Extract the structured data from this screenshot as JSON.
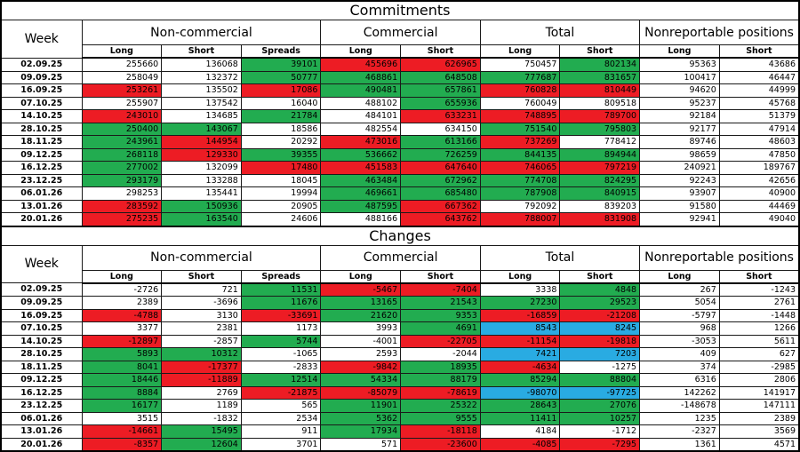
{
  "colors": {
    "green": "#22AC50",
    "red": "#ED1C24",
    "blue": "#29ABE2",
    "white": "#FFFFFF"
  },
  "fill_legend": {
    "w": "white",
    "g": "green",
    "r": "red",
    "b": "blue"
  },
  "chart_data": [
    {
      "type": "table",
      "title": "Commitments",
      "week_label": "Week",
      "groups": [
        {
          "label": "Non-commercial",
          "columns": [
            "Long",
            "Short",
            "Spreads"
          ]
        },
        {
          "label": "Commercial",
          "columns": [
            "Long",
            "Short"
          ]
        },
        {
          "label": "Total",
          "columns": [
            "Long",
            "Short"
          ]
        },
        {
          "label": "Nonreportable positions",
          "columns": [
            "Long",
            "Short"
          ]
        }
      ],
      "rows": [
        {
          "week": "02.09.25",
          "values": [
            "255660",
            "136068",
            "39101",
            "455696",
            "626965",
            "750457",
            "802134",
            "95363",
            "43686"
          ],
          "fills": [
            "w",
            "w",
            "g",
            "r",
            "r",
            "w",
            "g",
            "w",
            "w"
          ]
        },
        {
          "week": "09.09.25",
          "values": [
            "258049",
            "132372",
            "50777",
            "468861",
            "648508",
            "777687",
            "831657",
            "100417",
            "46447"
          ],
          "fills": [
            "w",
            "w",
            "g",
            "g",
            "g",
            "g",
            "g",
            "w",
            "w"
          ]
        },
        {
          "week": "16.09.25",
          "values": [
            "253261",
            "135502",
            "17086",
            "490481",
            "657861",
            "760828",
            "810449",
            "94620",
            "44999"
          ],
          "fills": [
            "r",
            "w",
            "r",
            "g",
            "g",
            "r",
            "r",
            "w",
            "w"
          ]
        },
        {
          "week": "07.10.25",
          "values": [
            "255907",
            "137542",
            "16040",
            "488102",
            "655936",
            "760049",
            "809518",
            "95237",
            "45768"
          ],
          "fills": [
            "w",
            "w",
            "w",
            "w",
            "g",
            "w",
            "w",
            "w",
            "w"
          ]
        },
        {
          "week": "14.10.25",
          "values": [
            "243010",
            "134685",
            "21784",
            "484101",
            "633231",
            "748895",
            "789700",
            "92184",
            "51379"
          ],
          "fills": [
            "r",
            "w",
            "g",
            "w",
            "r",
            "r",
            "r",
            "w",
            "w"
          ]
        },
        {
          "week": "28.10.25",
          "values": [
            "250400",
            "143067",
            "18586",
            "482554",
            "634150",
            "751540",
            "795803",
            "92177",
            "47914"
          ],
          "fills": [
            "g",
            "g",
            "w",
            "w",
            "w",
            "g",
            "g",
            "w",
            "w"
          ]
        },
        {
          "week": "18.11.25",
          "values": [
            "243961",
            "144954",
            "20292",
            "473016",
            "613166",
            "737269",
            "778412",
            "89746",
            "48603"
          ],
          "fills": [
            "g",
            "r",
            "w",
            "r",
            "g",
            "r",
            "w",
            "w",
            "w"
          ]
        },
        {
          "week": "09.12.25",
          "values": [
            "268118",
            "129330",
            "39355",
            "536662",
            "726259",
            "844135",
            "894944",
            "98659",
            "47850"
          ],
          "fills": [
            "g",
            "r",
            "g",
            "g",
            "g",
            "g",
            "g",
            "w",
            "w"
          ]
        },
        {
          "week": "16.12.25",
          "values": [
            "277002",
            "132099",
            "17480",
            "451583",
            "647640",
            "746065",
            "797219",
            "240921",
            "189767"
          ],
          "fills": [
            "g",
            "w",
            "r",
            "r",
            "r",
            "r",
            "r",
            "w",
            "w"
          ]
        },
        {
          "week": "23.12.25",
          "values": [
            "293179",
            "133288",
            "18045",
            "463484",
            "672962",
            "774708",
            "824295",
            "92243",
            "42656"
          ],
          "fills": [
            "g",
            "w",
            "w",
            "g",
            "g",
            "g",
            "g",
            "w",
            "w"
          ]
        },
        {
          "week": "06.01.26",
          "values": [
            "298253",
            "135441",
            "19994",
            "469661",
            "685480",
            "787908",
            "840915",
            "93907",
            "40900"
          ],
          "fills": [
            "w",
            "w",
            "w",
            "g",
            "g",
            "g",
            "g",
            "w",
            "w"
          ]
        },
        {
          "week": "13.01.26",
          "values": [
            "283592",
            "150936",
            "20905",
            "487595",
            "667362",
            "792092",
            "839203",
            "91580",
            "44469"
          ],
          "fills": [
            "r",
            "g",
            "w",
            "g",
            "r",
            "w",
            "w",
            "w",
            "w"
          ]
        },
        {
          "week": "20.01.26",
          "values": [
            "275235",
            "163540",
            "24606",
            "488166",
            "643762",
            "788007",
            "831908",
            "92941",
            "49040"
          ],
          "fills": [
            "r",
            "g",
            "w",
            "w",
            "r",
            "r",
            "r",
            "w",
            "w"
          ]
        }
      ]
    },
    {
      "type": "table",
      "title": "Changes",
      "week_label": "Week",
      "groups": [
        {
          "label": "Non-commercial",
          "columns": [
            "Long",
            "Short",
            "Spreads"
          ]
        },
        {
          "label": "Commercial",
          "columns": [
            "Long",
            "Short"
          ]
        },
        {
          "label": "Total",
          "columns": [
            "Long",
            "Short"
          ]
        },
        {
          "label": "Nonreportable positions",
          "columns": [
            "Long",
            "Short"
          ]
        }
      ],
      "rows": [
        {
          "week": "02.09.25",
          "values": [
            "-2726",
            "721",
            "11531",
            "-5467",
            "-7404",
            "3338",
            "4848",
            "267",
            "-1243"
          ],
          "fills": [
            "w",
            "w",
            "g",
            "r",
            "r",
            "w",
            "g",
            "w",
            "w"
          ]
        },
        {
          "week": "09.09.25",
          "values": [
            "2389",
            "-3696",
            "11676",
            "13165",
            "21543",
            "27230",
            "29523",
            "5054",
            "2761"
          ],
          "fills": [
            "w",
            "w",
            "g",
            "g",
            "g",
            "g",
            "g",
            "w",
            "w"
          ]
        },
        {
          "week": "16.09.25",
          "values": [
            "-4788",
            "3130",
            "-33691",
            "21620",
            "9353",
            "-16859",
            "-21208",
            "-5797",
            "-1448"
          ],
          "fills": [
            "r",
            "w",
            "r",
            "g",
            "g",
            "r",
            "r",
            "w",
            "w"
          ]
        },
        {
          "week": "07.10.25",
          "values": [
            "3377",
            "2381",
            "1173",
            "3993",
            "4691",
            "8543",
            "8245",
            "968",
            "1266"
          ],
          "fills": [
            "w",
            "w",
            "w",
            "w",
            "g",
            "b",
            "b",
            "w",
            "w"
          ]
        },
        {
          "week": "14.10.25",
          "values": [
            "-12897",
            "-2857",
            "5744",
            "-4001",
            "-22705",
            "-11154",
            "-19818",
            "-3053",
            "5611"
          ],
          "fills": [
            "r",
            "w",
            "g",
            "w",
            "r",
            "r",
            "r",
            "w",
            "w"
          ]
        },
        {
          "week": "28.10.25",
          "values": [
            "5893",
            "10312",
            "-1065",
            "2593",
            "-2044",
            "7421",
            "7203",
            "409",
            "627"
          ],
          "fills": [
            "g",
            "g",
            "w",
            "w",
            "w",
            "b",
            "b",
            "w",
            "w"
          ]
        },
        {
          "week": "18.11.25",
          "values": [
            "8041",
            "-17377",
            "-2833",
            "-9842",
            "18935",
            "-4634",
            "-1275",
            "374",
            "-2985"
          ],
          "fills": [
            "g",
            "r",
            "w",
            "r",
            "g",
            "r",
            "w",
            "w",
            "w"
          ]
        },
        {
          "week": "09.12.25",
          "values": [
            "18446",
            "-11889",
            "12514",
            "54334",
            "88179",
            "85294",
            "88804",
            "6316",
            "2806"
          ],
          "fills": [
            "g",
            "r",
            "g",
            "g",
            "g",
            "g",
            "g",
            "w",
            "w"
          ]
        },
        {
          "week": "16.12.25",
          "values": [
            "8884",
            "2769",
            "-21875",
            "-85079",
            "-78619",
            "-98070",
            "-97725",
            "142262",
            "141917"
          ],
          "fills": [
            "g",
            "w",
            "r",
            "r",
            "r",
            "b",
            "b",
            "w",
            "w"
          ]
        },
        {
          "week": "23.12.25",
          "values": [
            "16177",
            "1189",
            "565",
            "11901",
            "25322",
            "28643",
            "27076",
            "-148678",
            "147111"
          ],
          "fills": [
            "g",
            "w",
            "w",
            "g",
            "g",
            "g",
            "g",
            "w",
            "w"
          ]
        },
        {
          "week": "06.01.26",
          "values": [
            "3515",
            "-1832",
            "2534",
            "5362",
            "9555",
            "11411",
            "10257",
            "1235",
            "2389"
          ],
          "fills": [
            "w",
            "w",
            "w",
            "g",
            "g",
            "g",
            "g",
            "w",
            "w"
          ]
        },
        {
          "week": "13.01.26",
          "values": [
            "-14661",
            "15495",
            "911",
            "17934",
            "-18118",
            "4184",
            "-1712",
            "-2327",
            "3569"
          ],
          "fills": [
            "r",
            "g",
            "w",
            "g",
            "r",
            "w",
            "w",
            "w",
            "w"
          ]
        },
        {
          "week": "20.01.26",
          "values": [
            "-8357",
            "12604",
            "3701",
            "571",
            "-23600",
            "-4085",
            "-7295",
            "1361",
            "4571"
          ],
          "fills": [
            "r",
            "g",
            "w",
            "w",
            "r",
            "r",
            "r",
            "w",
            "w"
          ]
        }
      ]
    }
  ]
}
